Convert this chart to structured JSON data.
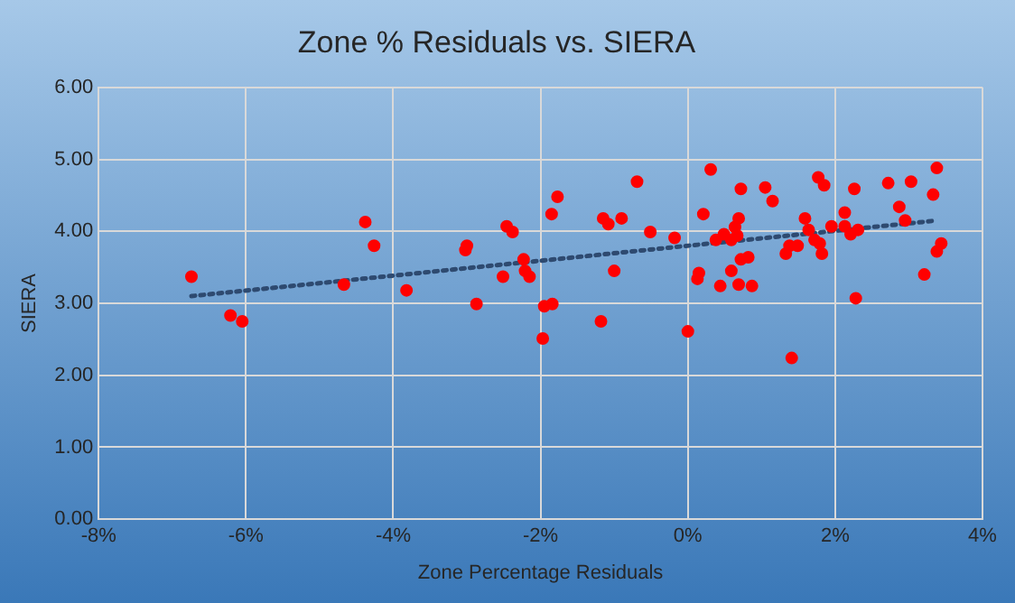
{
  "chart_data": {
    "type": "scatter",
    "title": "Zone % Residuals vs. SIERA",
    "xlabel": "Zone Percentage Residuals",
    "ylabel": "SIERA",
    "xlim": [
      -8,
      4
    ],
    "ylim": [
      0,
      6
    ],
    "xticks": [
      {
        "value": -8,
        "label": "-8%"
      },
      {
        "value": -6,
        "label": "-6%"
      },
      {
        "value": -4,
        "label": "-4%"
      },
      {
        "value": -2,
        "label": "-2%"
      },
      {
        "value": 0,
        "label": "0%"
      },
      {
        "value": 2,
        "label": "2%"
      },
      {
        "value": 4,
        "label": "4%"
      }
    ],
    "yticks": [
      {
        "value": 0,
        "label": "0.00"
      },
      {
        "value": 1,
        "label": "1.00"
      },
      {
        "value": 2,
        "label": "2.00"
      },
      {
        "value": 3,
        "label": "3.00"
      },
      {
        "value": 4,
        "label": "4.00"
      },
      {
        "value": 5,
        "label": "5.00"
      },
      {
        "value": 6,
        "label": "6.00"
      }
    ],
    "grid": true,
    "legend": false,
    "marker": "circle",
    "series": [
      {
        "type": "scatter",
        "color": "#ff0000",
        "x": [
          -6.74,
          -6.21,
          -6.05,
          -4.67,
          -4.38,
          -4.26,
          -3.82,
          -3.02,
          -3.0,
          -2.87,
          -2.46,
          -2.38,
          -2.51,
          -2.23,
          -2.21,
          -2.15,
          -1.95,
          -1.84,
          -1.97,
          -1.85,
          -1.77,
          -1.18,
          -1.15,
          -1.08,
          -0.9,
          -1.0,
          -0.69,
          -0.51,
          -0.18,
          0.0,
          0.31,
          0.21,
          0.15,
          0.13,
          0.44,
          0.38,
          0.49,
          0.59,
          0.64,
          0.67,
          0.69,
          0.72,
          0.59,
          0.72,
          0.82,
          0.69,
          0.87,
          1.05,
          1.15,
          1.41,
          1.33,
          1.38,
          1.49,
          1.59,
          1.64,
          1.72,
          1.79,
          1.82,
          1.77,
          1.85,
          1.95,
          2.13,
          2.13,
          2.21,
          2.31,
          2.26,
          2.28,
          2.72,
          2.87,
          2.95,
          3.03,
          3.21,
          3.33,
          3.38,
          3.38,
          3.44
        ],
        "values": [
          3.37,
          2.83,
          2.75,
          3.26,
          4.13,
          3.8,
          3.18,
          3.74,
          3.8,
          2.99,
          4.07,
          3.99,
          3.37,
          3.61,
          3.45,
          3.37,
          2.96,
          2.99,
          2.51,
          4.24,
          4.48,
          2.75,
          4.18,
          4.1,
          4.18,
          3.45,
          4.69,
          3.99,
          3.91,
          2.61,
          4.86,
          4.24,
          3.42,
          3.34,
          3.24,
          3.88,
          3.96,
          3.88,
          4.06,
          3.94,
          4.18,
          4.59,
          3.45,
          3.61,
          3.64,
          3.26,
          3.24,
          4.61,
          4.42,
          2.24,
          3.69,
          3.8,
          3.8,
          4.18,
          4.02,
          3.88,
          3.83,
          3.69,
          4.75,
          4.64,
          4.07,
          4.26,
          4.07,
          3.96,
          4.02,
          4.59,
          3.07,
          4.67,
          4.34,
          4.15,
          4.69,
          3.4,
          4.51,
          4.88,
          3.72,
          3.83
        ]
      },
      {
        "type": "line",
        "color": "#2e4a70",
        "line_style": "dotted",
        "marker": "none",
        "x": [
          -6.74,
          3.38
        ],
        "values": [
          3.1,
          4.15
        ]
      }
    ]
  }
}
